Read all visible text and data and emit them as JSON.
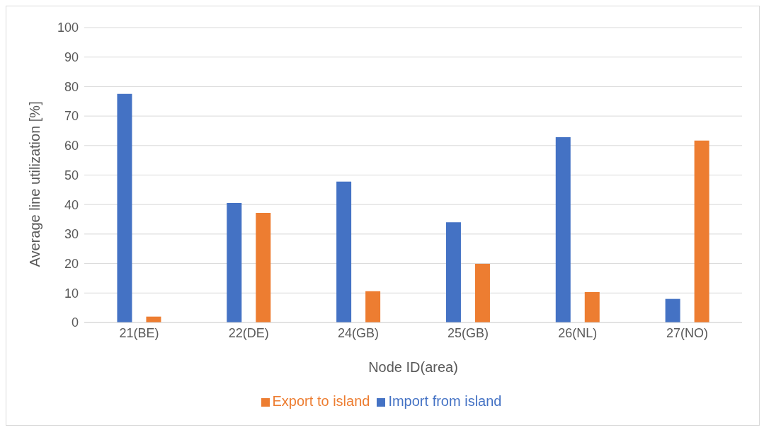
{
  "chart_data": {
    "type": "bar",
    "xlabel": "Node ID(area)",
    "ylabel": "Average line utilization [%]",
    "categories": [
      "21(BE)",
      "22(DE)",
      "24(GB)",
      "25(GB)",
      "26(NL)",
      "27(NO)"
    ],
    "series": [
      {
        "name": "Import from island",
        "color": "#4472c4",
        "values": [
          77.5,
          40.5,
          47.8,
          34,
          62.8,
          8
        ]
      },
      {
        "name": "Export to island",
        "color": "#ed7d31",
        "values": [
          2,
          37.2,
          10.6,
          19.9,
          10.3,
          61.7
        ]
      }
    ],
    "ylim": [
      0,
      100
    ],
    "yticks": [
      0,
      10,
      20,
      30,
      40,
      50,
      60,
      70,
      80,
      90,
      100
    ],
    "grid": "y",
    "legend": "bottom"
  }
}
